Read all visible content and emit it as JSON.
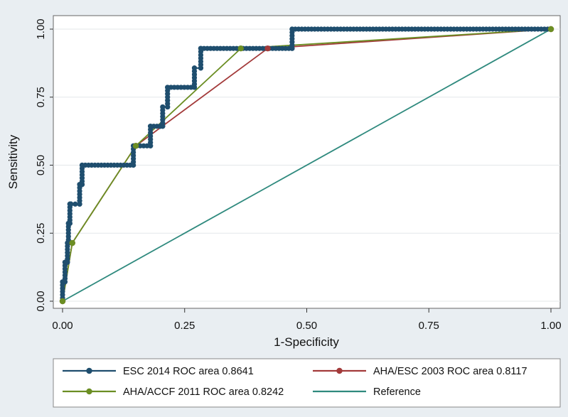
{
  "chart_data": {
    "type": "line",
    "title": "",
    "xlabel": "1-Specificity",
    "ylabel": "Sensitivity",
    "xlim": [
      0,
      1
    ],
    "ylim": [
      0,
      1
    ],
    "xticks": [
      "0.00",
      "0.25",
      "0.50",
      "0.75",
      "1.00"
    ],
    "yticks": [
      "0.00",
      "0.25",
      "0.50",
      "0.75",
      "1.00"
    ],
    "grid": true,
    "legend_position": "bottom",
    "series": [
      {
        "name": "ESC 2014 ROC area 0.8641",
        "color": "#1f4e6e",
        "style": "step-with-markers",
        "x": [
          0,
          0,
          0.005,
          0.005,
          0.01,
          0.01,
          0.012,
          0.012,
          0.015,
          0.015,
          0.017,
          0.017,
          0.035,
          0.035,
          0.04,
          0.04,
          0.145,
          0.145,
          0.18,
          0.18,
          0.2,
          0.2,
          0.205,
          0.205,
          0.215,
          0.215,
          0.27,
          0.27,
          0.283,
          0.283,
          0.47,
          0.47,
          1.0
        ],
        "y": [
          0,
          0.071,
          0.071,
          0.143,
          0.143,
          0.214,
          0.214,
          0.286,
          0.286,
          0.357,
          0.357,
          0.357,
          0.357,
          0.429,
          0.429,
          0.5,
          0.5,
          0.571,
          0.571,
          0.643,
          0.643,
          0.643,
          0.643,
          0.714,
          0.714,
          0.786,
          0.786,
          0.857,
          0.857,
          0.929,
          0.929,
          1.0,
          1.0
        ]
      },
      {
        "name": "AHA/ESC 2003 ROC area 0.8117",
        "color": "#a33a3a",
        "style": "line-with-markers",
        "x": [
          0,
          0.02,
          0.15,
          0.42,
          1.0
        ],
        "y": [
          0,
          0.214,
          0.571,
          0.929,
          1.0
        ]
      },
      {
        "name": "AHA/ACCF 2011 ROC area 0.8242",
        "color": "#6b8e23",
        "style": "line-with-markers",
        "x": [
          0,
          0.02,
          0.15,
          0.365,
          1.0
        ],
        "y": [
          0,
          0.214,
          0.571,
          0.929,
          1.0
        ]
      },
      {
        "name": "Reference",
        "color": "#2f8a7e",
        "style": "line",
        "x": [
          0,
          1.0
        ],
        "y": [
          0,
          1.0
        ]
      }
    ]
  }
}
